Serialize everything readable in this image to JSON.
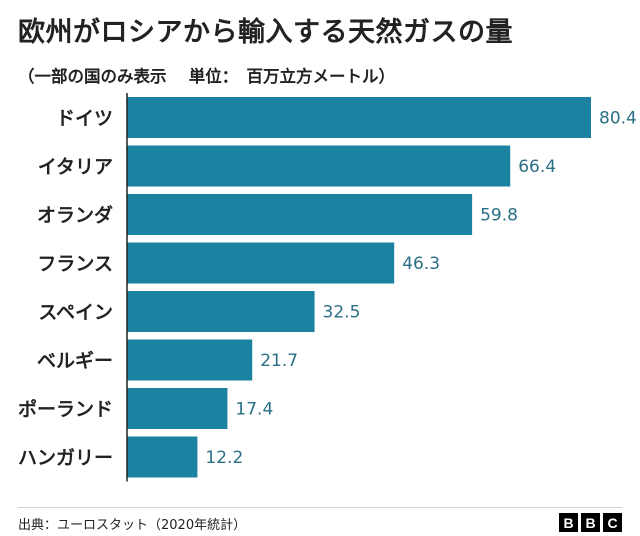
{
  "header": {
    "title": "欧州がロシアから輸入する天然ガスの量",
    "subtitle": "（一部の国のみ表示　 単位：　百万立方メートル）"
  },
  "chart_data": {
    "type": "bar",
    "orientation": "horizontal",
    "title": "欧州がロシアから輸入する天然ガスの量",
    "subtitle": "（一部の国のみ表示　 単位：　百万立方メートル）",
    "unit": "百万立方メートル",
    "categories": [
      "ドイツ",
      "イタリア",
      "オランダ",
      "フランス",
      "スペイン",
      "ベルギー",
      "ポーランド",
      "ハンガリー"
    ],
    "values": [
      80.4,
      66.4,
      59.8,
      46.3,
      32.5,
      21.7,
      17.4,
      12.2
    ],
    "value_labels": [
      "80.4",
      "66.4",
      "59.8",
      "46.3",
      "32.5",
      "21.7",
      "17.4",
      "12.2"
    ],
    "xlim": [
      0,
      80.4
    ],
    "grid": false,
    "bar_color": "#1b82a1",
    "label_color": "#2b6f86"
  },
  "footer": {
    "source": "出典：ユーロスタット（2020年統計）",
    "logo_letters": [
      "B",
      "B",
      "C"
    ]
  }
}
